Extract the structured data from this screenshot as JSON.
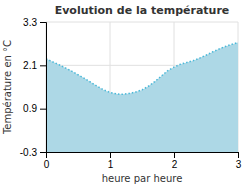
{
  "chart_data": {
    "type": "area",
    "title": "Evolution de la température",
    "xlabel": "heure par heure",
    "ylabel": "Température en °C",
    "xlim": [
      0,
      3
    ],
    "ylim": [
      -0.3,
      3.3
    ],
    "xticks": [
      0,
      1,
      2,
      3
    ],
    "yticks": [
      -0.3,
      0.9,
      2.1,
      3.3
    ],
    "grid": true,
    "color": "#add8e6",
    "x": [
      0.0,
      0.1,
      0.2,
      0.3,
      0.4,
      0.5,
      0.6,
      0.7,
      0.8,
      0.9,
      1.0,
      1.05,
      1.1,
      1.15,
      1.2,
      1.3,
      1.4,
      1.5,
      1.6,
      1.7,
      1.8,
      1.9,
      2.0,
      2.1,
      2.2,
      2.3,
      2.4,
      2.5,
      2.6,
      2.7,
      2.8,
      2.9,
      3.0
    ],
    "series": [
      {
        "values": [
          2.28,
          2.2,
          2.12,
          2.03,
          1.94,
          1.84,
          1.74,
          1.63,
          1.52,
          1.42,
          1.35,
          1.33,
          1.31,
          1.3,
          1.3,
          1.32,
          1.36,
          1.42,
          1.52,
          1.65,
          1.8,
          1.95,
          2.05,
          2.13,
          2.18,
          2.23,
          2.3,
          2.38,
          2.47,
          2.55,
          2.62,
          2.68,
          2.73
        ],
        "color": "#4ab8d8",
        "line_style": "dotted"
      }
    ]
  }
}
